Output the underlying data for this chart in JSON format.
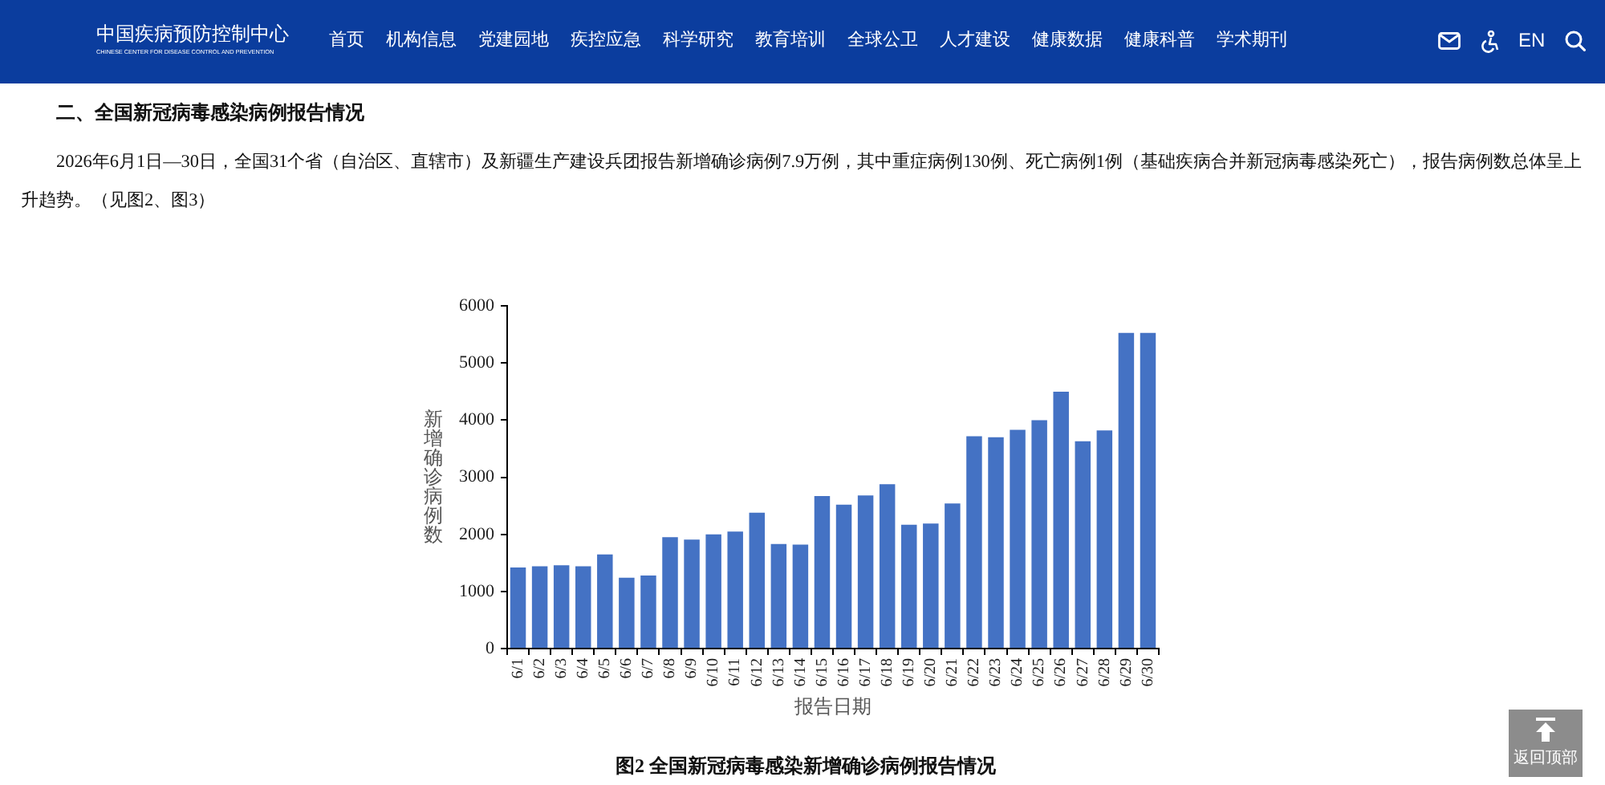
{
  "chart_data": {
    "type": "bar",
    "title": "图2 全国新冠病毒感染新增确诊病例报告情况",
    "xlabel": "报告日期",
    "ylabel": "新增确诊病例数",
    "categories": [
      "6/1",
      "6/2",
      "6/3",
      "6/4",
      "6/5",
      "6/6",
      "6/7",
      "6/8",
      "6/9",
      "6/10",
      "6/11",
      "6/12",
      "6/13",
      "6/14",
      "6/15",
      "6/16",
      "6/17",
      "6/18",
      "6/19",
      "6/20",
      "6/21",
      "6/22",
      "6/23",
      "6/24",
      "6/25",
      "6/26",
      "6/27",
      "6/28",
      "6/29",
      "6/30"
    ],
    "values": [
      1420,
      1440,
      1460,
      1440,
      1650,
      1240,
      1280,
      1950,
      1910,
      2000,
      2050,
      2380,
      1830,
      1820,
      2670,
      2520,
      2680,
      2880,
      2170,
      2190,
      2540,
      3720,
      3700,
      3830,
      4000,
      4500,
      3630,
      3820,
      5530,
      5530
    ],
    "color": "#4472c4",
    "ylim": [
      0,
      6000
    ],
    "yticks": [
      0,
      1000,
      2000,
      3000,
      4000,
      5000,
      6000
    ],
    "grid": false,
    "legend": false,
    "annotations": [
      "中国疾病预防控制中心",
      "CHINESE CENTER FOR DISEASE CONTROL AND PREVENTION",
      "首页",
      "机构信息",
      "党建园地",
      "疾控应急",
      "科学研究",
      "教育培训",
      "全球公卫",
      "人才建设",
      "健康数据",
      "健康科普",
      "学术期刊",
      "EN",
      "二、全国新冠病毒感染病例报告情况",
      "2026年6月1日—30日，全国31个省（自治区、直辖市）及新疆生产建设兵团报告新增确诊病例7.9万例，其中重症病例130例、死亡病例1例（基础疾病合并新冠病毒感染死亡），报告病例数总体呈上升趋势。（见图2、图3）",
      "返回顶部"
    ]
  }
}
